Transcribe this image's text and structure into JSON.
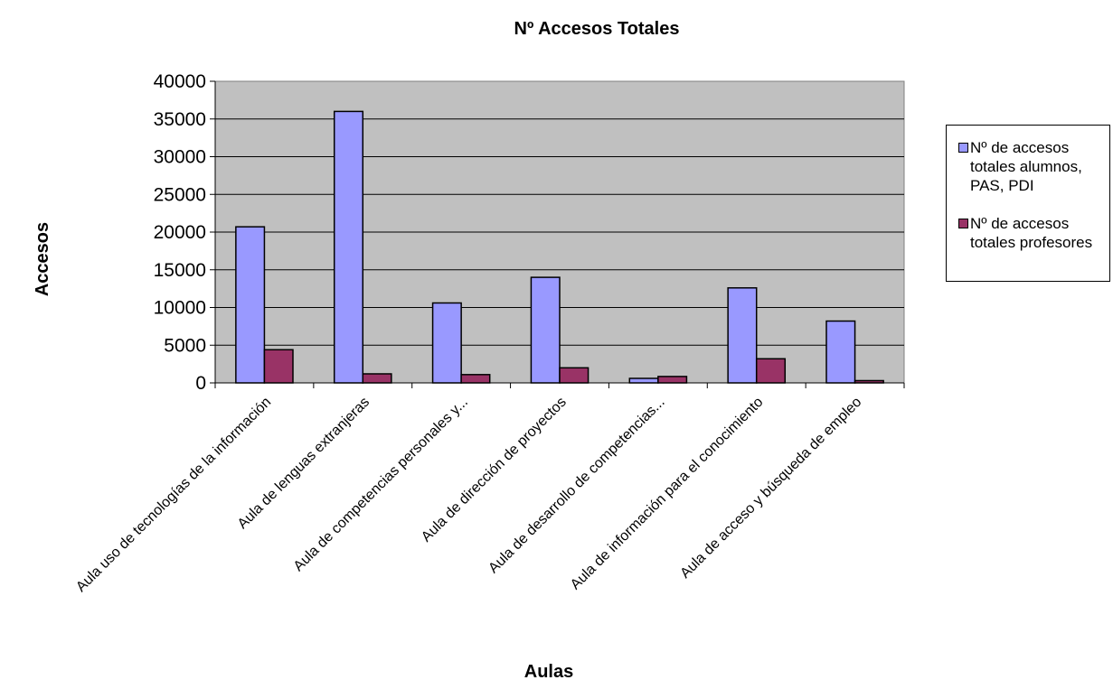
{
  "chart_data": {
    "type": "bar",
    "title": "Nº Accesos Totales",
    "xlabel": "Aulas",
    "ylabel": "Accesos",
    "ylim": [
      0,
      40000
    ],
    "yticks": [
      "0",
      "5000",
      "10000",
      "15000",
      "20000",
      "25000",
      "30000",
      "35000",
      "40000"
    ],
    "grid": true,
    "legend_position": "right",
    "categories": [
      "Aula uso de tecnologías de la información",
      "Aula de lenguas extranjeras",
      "Aula de competencias personales y...",
      "Aula de dirección de proyectos",
      "Aula de desarrollo de competencias...",
      "Aula de información para el conocimiento",
      "Aula de acceso y búsqueda de empleo"
    ],
    "series": [
      {
        "name": "Nº de accesos totales alumnos, PAS, PDI",
        "color": "#9999ff",
        "values": [
          20700,
          36000,
          10600,
          14000,
          600,
          12600,
          8200
        ]
      },
      {
        "name": "Nº de accesos totales profesores",
        "color": "#993366",
        "values": [
          4400,
          1200,
          1100,
          2000,
          850,
          3200,
          300
        ]
      }
    ],
    "plot_background": "#c0c0c0"
  }
}
